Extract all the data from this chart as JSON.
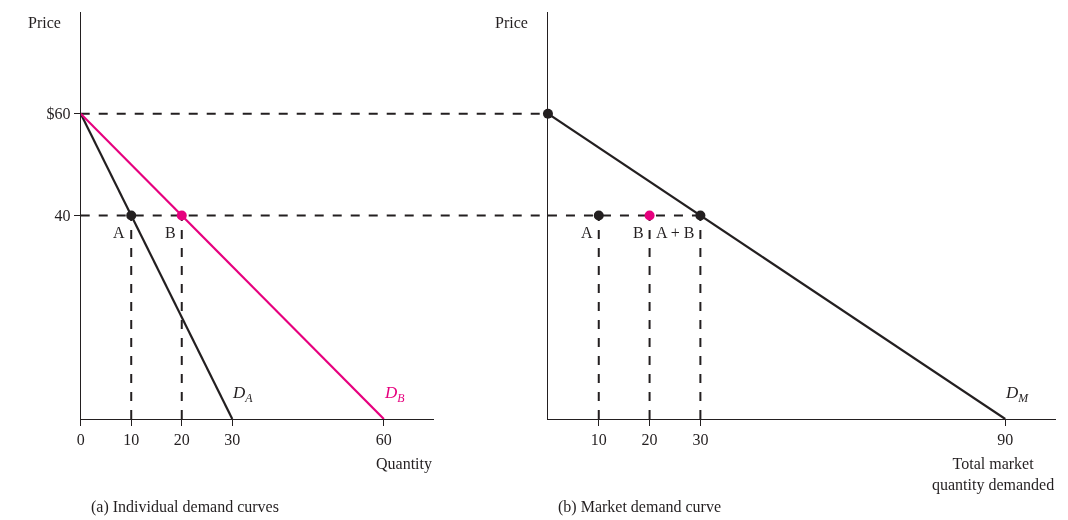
{
  "chart_data": [
    {
      "type": "line",
      "title": "(a) Individual demand curves",
      "xlabel": "Quantity",
      "ylabel": "Price",
      "xlim": [
        0,
        70
      ],
      "ylim": [
        0,
        80
      ],
      "xticks": [
        0,
        10,
        20,
        30,
        60
      ],
      "yticks": [
        40,
        {
          "value": 60,
          "label": "$60"
        }
      ],
      "ref_lines": [
        {
          "axis": "y",
          "value": 60,
          "label": null,
          "color": "#231f20",
          "line_style": "dashed"
        },
        {
          "axis": "y",
          "value": 40,
          "label": null,
          "color": "#231f20",
          "line_style": "dashed"
        }
      ],
      "series": [
        {
          "name": "D$_{A}$",
          "color": "#231f20",
          "x": [
            0,
            30
          ],
          "values": [
            60,
            0
          ]
        },
        {
          "name": "D$_{B}$",
          "color": "#e6007e",
          "x": [
            0,
            60
          ],
          "values": [
            60,
            0
          ]
        },
        {
          "color": "#231f20",
          "line_style": "dashed",
          "x": [
            10,
            10
          ],
          "values": [
            0,
            40
          ]
        },
        {
          "color": "#231f20",
          "line_style": "dashed",
          "x": [
            20,
            20
          ],
          "values": [
            0,
            40
          ]
        },
        {
          "type": "scatter",
          "marker": "circle",
          "colors": [
            "#231f20",
            "#e6007e"
          ],
          "x": [
            10,
            20
          ],
          "values": [
            40,
            40
          ]
        }
      ],
      "annotations": [
        {
          "text": "A",
          "x": 10,
          "y": 40
        },
        {
          "text": "B",
          "x": 20,
          "y": 40
        }
      ]
    },
    {
      "type": "line",
      "title": "(b) Market demand curve",
      "xlabel": "Total market quantity demanded",
      "ylabel": "Price",
      "xlim": [
        0,
        100
      ],
      "ylim": [
        0,
        80
      ],
      "xticks": [
        10,
        20,
        30,
        90
      ],
      "tick_labels": "x",
      "series": [
        {
          "name": "D$_{M}$",
          "color": "#231f20",
          "x": [
            0,
            90
          ],
          "values": [
            60,
            0
          ]
        },
        {
          "color": "#231f20",
          "line_style": "dashed",
          "x": [
            0,
            30
          ],
          "values": [
            40,
            40
          ]
        },
        {
          "color": "#231f20",
          "line_style": "dashed",
          "x": [
            10,
            10
          ],
          "values": [
            0,
            40
          ]
        },
        {
          "color": "#231f20",
          "line_style": "dashed",
          "x": [
            20,
            20
          ],
          "values": [
            0,
            40
          ]
        },
        {
          "color": "#231f20",
          "line_style": "dashed",
          "x": [
            30,
            30
          ],
          "values": [
            0,
            40
          ]
        },
        {
          "type": "scatter",
          "marker": "circle",
          "colors": [
            "#231f20",
            "#231f20",
            "#e6007e",
            "#231f20"
          ],
          "x": [
            0,
            10,
            20,
            30
          ],
          "values": [
            60,
            40,
            40,
            40
          ]
        }
      ],
      "annotations": [
        {
          "text": "A",
          "x": 10,
          "y": 40
        },
        {
          "text": "B",
          "x": 20,
          "y": 40
        },
        {
          "text": "A + B",
          "x": 30,
          "y": 40
        }
      ]
    }
  ]
}
